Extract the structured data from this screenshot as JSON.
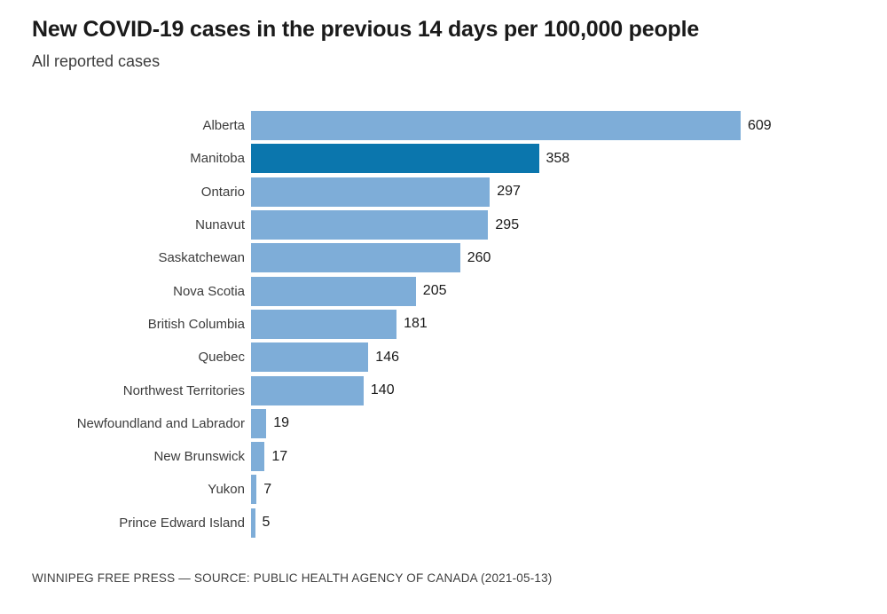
{
  "title": "New COVID-19 cases in the previous 14 days per 100,000 people",
  "subtitle": "All reported cases",
  "footer": "WINNIPEG FREE PRESS — SOURCE: PUBLIC HEALTH AGENCY OF CANADA (2021-05-13)",
  "colors": {
    "bar_default": "#7eadd8",
    "bar_highlight": "#0b76ad",
    "title_text": "#1a1a1a",
    "label_text": "#3c3c3c",
    "value_text": "#1a1a1a",
    "footer_text": "#3e3e3e",
    "background": "#ffffff"
  },
  "chart_data": {
    "type": "bar",
    "orientation": "horizontal",
    "title": "New COVID-19 cases in the previous 14 days per 100,000 people",
    "subtitle": "All reported cases",
    "source": "WINNIPEG FREE PRESS — SOURCE: PUBLIC HEALTH AGENCY OF CANADA (2021-05-13)",
    "categories": [
      "Alberta",
      "Manitoba",
      "Ontario",
      "Nunavut",
      "Saskatchewan",
      "Nova Scotia",
      "British Columbia",
      "Quebec",
      "Northwest Territories",
      "Newfoundland and Labrador",
      "New Brunswick",
      "Yukon",
      "Prince Edward Island"
    ],
    "values": [
      609,
      358,
      297,
      295,
      260,
      205,
      181,
      146,
      140,
      19,
      17,
      7,
      5
    ],
    "highlighted_category": "Manitoba",
    "value_labels_shown": true,
    "axis_shown": false,
    "grid": false,
    "legend": "none",
    "xlim": [
      0,
      609
    ]
  }
}
